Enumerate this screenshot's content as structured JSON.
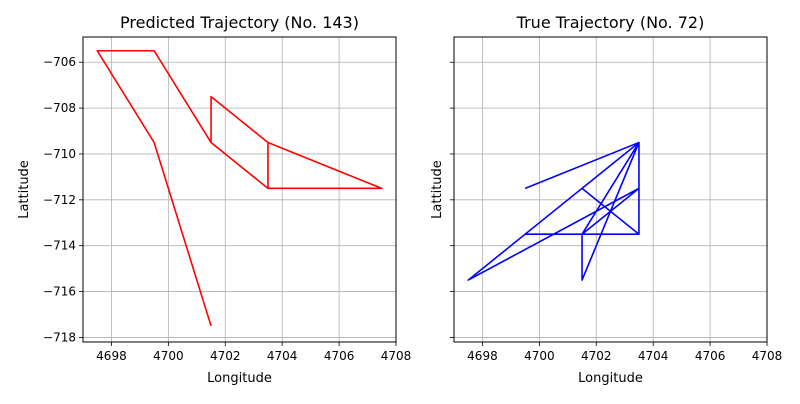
{
  "chart_data": [
    {
      "type": "line",
      "title": "Predicted Trajectory (No. 143)",
      "xlabel": "Longitude",
      "ylabel": "Lattitude",
      "xlim": [
        4697,
        4708
      ],
      "ylim": [
        -718.2,
        -704.9
      ],
      "xticks": [
        4698,
        4700,
        4702,
        4704,
        4706,
        4708
      ],
      "yticks": [
        -706,
        -708,
        -710,
        -712,
        -714,
        -716,
        -718
      ],
      "grid": true,
      "show_ytick_labels": true,
      "color": "#ff0000",
      "points": [
        [
          4701.5,
          -717.5
        ],
        [
          4699.5,
          -709.5
        ],
        [
          4697.5,
          -705.5
        ],
        [
          4699.5,
          -705.5
        ],
        [
          4701.5,
          -709.5
        ],
        [
          4703.5,
          -711.5
        ],
        [
          4703.5,
          -709.5
        ],
        [
          4701.5,
          -707.5
        ],
        [
          4701.5,
          -709.5
        ],
        [
          4703.5,
          -711.5
        ],
        [
          4707.5,
          -711.5
        ],
        [
          4703.5,
          -709.5
        ]
      ]
    },
    {
      "type": "line",
      "title": "True Trajectory (No. 72)",
      "xlabel": "Longitude",
      "ylabel": "Lattitude",
      "xlim": [
        4697,
        4708
      ],
      "ylim": [
        -718.2,
        -704.9
      ],
      "xticks": [
        4698,
        4700,
        4702,
        4704,
        4706,
        4708
      ],
      "yticks": [
        -706,
        -708,
        -710,
        -712,
        -714,
        -716,
        -718
      ],
      "grid": true,
      "show_ytick_labels": false,
      "color": "#0000ff",
      "points": [
        [
          4699.5,
          -711.5
        ],
        [
          4703.5,
          -709.5
        ],
        [
          4701.5,
          -711.5
        ],
        [
          4703.5,
          -713.5
        ],
        [
          4699.5,
          -713.5
        ],
        [
          4703.5,
          -713.5
        ],
        [
          4703.5,
          -709.5
        ],
        [
          4701.5,
          -715.5
        ],
        [
          4701.5,
          -713.5
        ],
        [
          4703.5,
          -709.5
        ],
        [
          4697.5,
          -715.5
        ],
        [
          4703.5,
          -711.5
        ],
        [
          4701.5,
          -713.5
        ],
        [
          4701.5,
          -715.5
        ],
        [
          4703.5,
          -709.5
        ],
        [
          4699.5,
          -711.5
        ]
      ]
    }
  ]
}
